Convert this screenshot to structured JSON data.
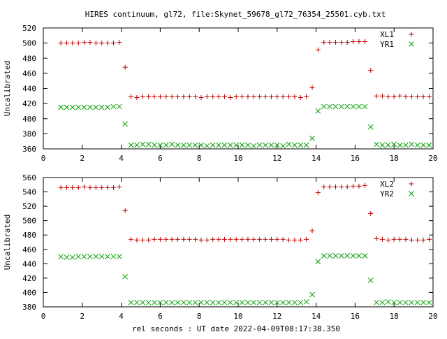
{
  "title": "HIRES continuum, gl72, file:Skynet_59678_gl72_76354_25501.cyb.txt",
  "xlabel": "rel seconds : UT date 2022-04-09T08:17:38.350",
  "colors": {
    "series1": "#c00000",
    "series2": "#00a000",
    "axis": "#000000",
    "grid": "#000000"
  },
  "chart_data": [
    {
      "type": "scatter",
      "ylabel": "Uncalibrated",
      "xlim": [
        0,
        20
      ],
      "ylim": [
        360,
        520
      ],
      "xticks": [
        0,
        2,
        4,
        6,
        8,
        10,
        12,
        14,
        16,
        18,
        20
      ],
      "yticks": [
        360,
        380,
        400,
        420,
        440,
        460,
        480,
        500,
        520
      ],
      "grid": false,
      "legend_position": "top-right",
      "series": [
        {
          "name": "XL1",
          "marker": "plus",
          "color": "#c00000",
          "x": [
            0.9,
            1.2,
            1.5,
            1.8,
            2.1,
            2.4,
            2.7,
            3.0,
            3.3,
            3.6,
            3.9,
            4.2,
            4.5,
            4.8,
            5.1,
            5.4,
            5.7,
            6.0,
            6.3,
            6.6,
            6.9,
            7.2,
            7.5,
            7.8,
            8.1,
            8.4,
            8.7,
            9.0,
            9.3,
            9.6,
            9.9,
            10.2,
            10.5,
            10.8,
            11.1,
            11.4,
            11.7,
            12.0,
            12.3,
            12.6,
            12.9,
            13.2,
            13.5,
            13.8,
            14.1,
            14.4,
            14.7,
            15.0,
            15.3,
            15.6,
            15.9,
            16.2,
            16.5,
            16.8,
            17.1,
            17.4,
            17.7,
            18.0,
            18.3,
            18.6,
            18.9,
            19.2,
            19.5,
            19.8
          ],
          "y": [
            500,
            500,
            500,
            500,
            501,
            501,
            500,
            500,
            500,
            500,
            501,
            468,
            429,
            428,
            429,
            429,
            429,
            429,
            429,
            429,
            429,
            429,
            429,
            429,
            428,
            429,
            429,
            429,
            429,
            428,
            429,
            429,
            429,
            429,
            429,
            429,
            429,
            429,
            429,
            429,
            429,
            428,
            429,
            441,
            491,
            501,
            501,
            501,
            501,
            501,
            502,
            502,
            502,
            464,
            430,
            430,
            429,
            429,
            430,
            429,
            429,
            429,
            429,
            429
          ]
        },
        {
          "name": "YR1",
          "marker": "cross",
          "color": "#00a000",
          "x": [
            0.9,
            1.2,
            1.5,
            1.8,
            2.1,
            2.4,
            2.7,
            3.0,
            3.3,
            3.6,
            3.9,
            4.2,
            4.5,
            4.8,
            5.1,
            5.4,
            5.7,
            6.0,
            6.3,
            6.6,
            6.9,
            7.2,
            7.5,
            7.8,
            8.1,
            8.4,
            8.7,
            9.0,
            9.3,
            9.6,
            9.9,
            10.2,
            10.5,
            10.8,
            11.1,
            11.4,
            11.7,
            12.0,
            12.3,
            12.6,
            12.9,
            13.2,
            13.5,
            13.8,
            14.1,
            14.4,
            14.7,
            15.0,
            15.3,
            15.6,
            15.9,
            16.2,
            16.5,
            16.8,
            17.1,
            17.4,
            17.7,
            18.0,
            18.3,
            18.6,
            18.9,
            19.2,
            19.5,
            19.8
          ],
          "y": [
            415,
            415,
            415,
            415,
            415,
            415,
            415,
            415,
            415,
            416,
            416,
            393,
            365,
            365,
            366,
            366,
            365,
            365,
            365,
            366,
            365,
            365,
            365,
            365,
            365,
            364,
            365,
            365,
            365,
            365,
            365,
            365,
            365,
            364,
            365,
            365,
            365,
            365,
            364,
            366,
            365,
            365,
            365,
            374,
            410,
            416,
            416,
            416,
            416,
            416,
            416,
            416,
            416,
            389,
            366,
            365,
            365,
            366,
            365,
            365,
            366,
            365,
            365,
            365
          ]
        }
      ]
    },
    {
      "type": "scatter",
      "ylabel": "Uncalibrated",
      "xlim": [
        0,
        20
      ],
      "ylim": [
        380,
        560
      ],
      "xticks": [
        0,
        2,
        4,
        6,
        8,
        10,
        12,
        14,
        16,
        18,
        20
      ],
      "yticks": [
        380,
        400,
        420,
        440,
        460,
        480,
        500,
        520,
        540,
        560
      ],
      "grid": false,
      "legend_position": "top-right",
      "series": [
        {
          "name": "XL2",
          "marker": "plus",
          "color": "#c00000",
          "x": [
            0.9,
            1.2,
            1.5,
            1.8,
            2.1,
            2.4,
            2.7,
            3.0,
            3.3,
            3.6,
            3.9,
            4.2,
            4.5,
            4.8,
            5.1,
            5.4,
            5.7,
            6.0,
            6.3,
            6.6,
            6.9,
            7.2,
            7.5,
            7.8,
            8.1,
            8.4,
            8.7,
            9.0,
            9.3,
            9.6,
            9.9,
            10.2,
            10.5,
            10.8,
            11.1,
            11.4,
            11.7,
            12.0,
            12.3,
            12.6,
            12.9,
            13.2,
            13.5,
            13.8,
            14.1,
            14.4,
            14.7,
            15.0,
            15.3,
            15.6,
            15.9,
            16.2,
            16.5,
            16.8,
            17.1,
            17.4,
            17.7,
            18.0,
            18.3,
            18.6,
            18.9,
            19.2,
            19.5,
            19.8
          ],
          "y": [
            546,
            546,
            546,
            546,
            547,
            546,
            546,
            546,
            546,
            546,
            547,
            514,
            474,
            473,
            473,
            473,
            474,
            474,
            474,
            474,
            474,
            474,
            474,
            474,
            473,
            473,
            474,
            474,
            474,
            474,
            474,
            474,
            474,
            474,
            474,
            474,
            474,
            474,
            474,
            473,
            473,
            473,
            474,
            486,
            539,
            547,
            547,
            547,
            547,
            547,
            548,
            548,
            549,
            510,
            475,
            474,
            473,
            474,
            474,
            474,
            473,
            473,
            473,
            474
          ]
        },
        {
          "name": "YR2",
          "marker": "cross",
          "color": "#00a000",
          "x": [
            0.9,
            1.2,
            1.5,
            1.8,
            2.1,
            2.4,
            2.7,
            3.0,
            3.3,
            3.6,
            3.9,
            4.2,
            4.5,
            4.8,
            5.1,
            5.4,
            5.7,
            6.0,
            6.3,
            6.6,
            6.9,
            7.2,
            7.5,
            7.8,
            8.1,
            8.4,
            8.7,
            9.0,
            9.3,
            9.6,
            9.9,
            10.2,
            10.5,
            10.8,
            11.1,
            11.4,
            11.7,
            12.0,
            12.3,
            12.6,
            12.9,
            13.2,
            13.5,
            13.8,
            14.1,
            14.4,
            14.7,
            15.0,
            15.3,
            15.6,
            15.9,
            16.2,
            16.5,
            16.8,
            17.1,
            17.4,
            17.7,
            18.0,
            18.3,
            18.6,
            18.9,
            19.2,
            19.5,
            19.8
          ],
          "y": [
            450,
            449,
            449,
            450,
            450,
            450,
            450,
            450,
            450,
            450,
            450,
            422,
            386,
            386,
            386,
            386,
            386,
            386,
            386,
            386,
            386,
            386,
            386,
            386,
            386,
            386,
            386,
            386,
            386,
            386,
            386,
            386,
            386,
            386,
            386,
            386,
            386,
            386,
            386,
            386,
            386,
            386,
            387,
            397,
            443,
            451,
            451,
            451,
            451,
            451,
            451,
            451,
            451,
            417,
            386,
            386,
            387,
            386,
            386,
            386,
            386,
            386,
            386,
            386
          ]
        }
      ]
    }
  ]
}
